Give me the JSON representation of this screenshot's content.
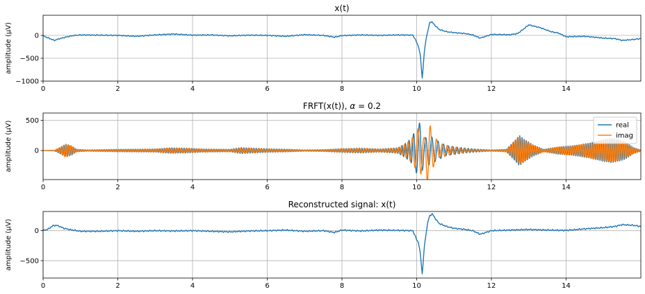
{
  "chart_data": [
    {
      "type": "line",
      "title": "x(t)",
      "xlabel": "",
      "ylabel": "amplitude (μV)",
      "xlim": [
        0,
        16
      ],
      "ylim": [
        -1000,
        440
      ],
      "xticks": [
        0,
        2,
        4,
        6,
        8,
        10,
        12,
        14
      ],
      "xtick_labels": [
        "0",
        "2",
        "4",
        "6",
        "8",
        "10",
        "12",
        "14"
      ],
      "yticks": [
        -1000,
        -500,
        0
      ],
      "ytick_labels": [
        "−1000",
        "−500",
        "0"
      ],
      "grid": true,
      "legend": null,
      "series": [
        {
          "color": "#1f77b4",
          "x": [
            0,
            0.15,
            0.3,
            0.45,
            0.6,
            0.8,
            1.0,
            1.5,
            2.0,
            2.5,
            3.0,
            3.5,
            4.0,
            4.5,
            5.0,
            5.5,
            6.0,
            6.5,
            7.0,
            7.5,
            7.8,
            8.0,
            8.5,
            9.0,
            9.5,
            9.9,
            10.0,
            10.05,
            10.1,
            10.15,
            10.2,
            10.25,
            10.3,
            10.35,
            10.4,
            10.5,
            10.6,
            10.8,
            11.0,
            11.3,
            11.5,
            11.7,
            12.0,
            12.5,
            12.7,
            12.85,
            13.0,
            13.3,
            13.6,
            13.8,
            14.0,
            14.5,
            15.0,
            15.3,
            15.5,
            15.8,
            16.0
          ],
          "y": [
            -10,
            -60,
            -110,
            -70,
            -40,
            -5,
            10,
            5,
            0,
            -20,
            10,
            30,
            5,
            10,
            -10,
            5,
            0,
            -20,
            15,
            0,
            -40,
            -5,
            10,
            0,
            10,
            5,
            -150,
            -250,
            -450,
            -950,
            -400,
            -80,
            100,
            280,
            300,
            210,
            130,
            80,
            60,
            40,
            10,
            -60,
            20,
            15,
            40,
            130,
            230,
            170,
            80,
            50,
            -30,
            -20,
            -60,
            -70,
            -110,
            -90,
            -70
          ]
        }
      ]
    },
    {
      "type": "line",
      "title": "FRFT(x(t)), α = 0.2",
      "title_text": "FRFT(x(t)), ",
      "title_symbol": "α",
      "title_suffix": " = 0.2",
      "xlabel": "",
      "ylabel": "amplitude (μV)",
      "xlim": [
        0,
        16
      ],
      "ylim": [
        -480,
        620
      ],
      "xticks": [
        0,
        2,
        4,
        6,
        8,
        10,
        12,
        14
      ],
      "xtick_labels": [
        "0",
        "2",
        "4",
        "6",
        "8",
        "10",
        "12",
        "14"
      ],
      "yticks": [
        0,
        500
      ],
      "ytick_labels": [
        "0",
        "500"
      ],
      "grid": true,
      "legend": "top-right",
      "legend_labels": [
        "real",
        "imag"
      ],
      "series": [
        {
          "name": "real",
          "color": "#1f77b4",
          "envelope_t": [
            0,
            0.3,
            0.45,
            0.6,
            0.75,
            0.9,
            1.2,
            2.0,
            3.0,
            3.4,
            3.8,
            4.3,
            5.0,
            5.3,
            5.6,
            6.0,
            6.6,
            7.0,
            7.5,
            8.0,
            8.5,
            9.0,
            9.5,
            9.7,
            9.85,
            10.0,
            10.1,
            10.2,
            10.35,
            10.5,
            10.8,
            11.3,
            11.6,
            12.0,
            12.4,
            12.6,
            12.75,
            12.9,
            13.1,
            13.4,
            13.8,
            14.2,
            14.6,
            15.0,
            15.2,
            15.4,
            15.6,
            15.8,
            16.0
          ],
          "envelope_a": [
            0,
            5,
            50,
            100,
            80,
            20,
            10,
            20,
            25,
            45,
            40,
            25,
            20,
            50,
            40,
            30,
            20,
            10,
            15,
            30,
            40,
            25,
            45,
            120,
            200,
            380,
            480,
            200,
            250,
            180,
            80,
            40,
            25,
            10,
            20,
            150,
            250,
            180,
            100,
            20,
            60,
            80,
            120,
            180,
            200,
            180,
            140,
            50,
            10
          ],
          "freq_t": [
            0,
            9.5,
            10.0,
            10.5,
            12.5,
            16.0
          ],
          "freq_f": [
            16,
            14,
            6,
            6,
            17,
            17
          ],
          "phase": 0
        },
        {
          "name": "imag",
          "color": "#ff7f0e",
          "envelope_t": [
            0,
            0.3,
            0.45,
            0.6,
            0.75,
            0.9,
            1.2,
            2.0,
            3.0,
            3.4,
            3.8,
            4.3,
            5.0,
            5.3,
            5.6,
            6.0,
            6.6,
            7.0,
            7.5,
            8.0,
            8.5,
            9.0,
            9.5,
            9.7,
            9.85,
            10.0,
            10.1,
            10.2,
            10.3,
            10.4,
            10.6,
            11.0,
            11.3,
            11.6,
            12.0,
            12.4,
            12.6,
            12.75,
            12.9,
            13.1,
            13.4,
            13.8,
            14.2,
            14.6,
            15.0,
            15.2,
            15.4,
            15.6,
            15.8,
            16.0
          ],
          "envelope_a": [
            0,
            5,
            50,
            110,
            80,
            20,
            10,
            20,
            25,
            40,
            35,
            25,
            20,
            40,
            35,
            25,
            20,
            10,
            15,
            30,
            35,
            25,
            40,
            110,
            180,
            330,
            420,
            200,
            560,
            320,
            120,
            60,
            30,
            20,
            10,
            20,
            140,
            230,
            170,
            90,
            20,
            60,
            80,
            120,
            170,
            190,
            170,
            130,
            50,
            10
          ],
          "freq_t": [
            0,
            9.5,
            10.0,
            10.5,
            12.5,
            16.0
          ],
          "freq_f": [
            16,
            14,
            6,
            6,
            17,
            17
          ],
          "phase": 1.5708
        }
      ]
    },
    {
      "type": "line",
      "title": "Reconstructed signal: x(t)",
      "xlabel": "",
      "ylabel": "amplitude (μV)",
      "xlim": [
        0,
        16
      ],
      "ylim": [
        -790,
        320
      ],
      "xticks": [
        0,
        2,
        4,
        6,
        8,
        10,
        12,
        14
      ],
      "xtick_labels": [
        "0",
        "2",
        "4",
        "6",
        "8",
        "10",
        "12",
        "14"
      ],
      "yticks": [
        -500,
        0
      ],
      "ytick_labels": [
        "−500",
        "0"
      ],
      "grid": true,
      "legend": null,
      "series": [
        {
          "color": "#1f77b4",
          "x": [
            0,
            0.15,
            0.25,
            0.35,
            0.45,
            0.55,
            0.7,
            1.0,
            1.5,
            2.0,
            2.5,
            3.0,
            3.5,
            4.0,
            4.5,
            5.0,
            5.5,
            6.0,
            6.5,
            7.0,
            7.5,
            7.8,
            8.0,
            8.5,
            9.0,
            9.5,
            9.9,
            10.0,
            10.05,
            10.1,
            10.15,
            10.2,
            10.25,
            10.3,
            10.35,
            10.42,
            10.5,
            10.6,
            10.8,
            11.0,
            11.3,
            11.5,
            11.7,
            12.0,
            12.5,
            13.0,
            13.5,
            14.0,
            14.5,
            15.0,
            15.3,
            15.5,
            15.8,
            16.0
          ],
          "y": [
            0,
            30,
            80,
            90,
            70,
            40,
            20,
            -10,
            -10,
            0,
            -10,
            0,
            -5,
            0,
            -10,
            -20,
            -5,
            0,
            10,
            -10,
            0,
            -30,
            10,
            -5,
            10,
            5,
            0,
            -150,
            -200,
            -400,
            -730,
            -300,
            -50,
            150,
            250,
            280,
            200,
            120,
            70,
            40,
            20,
            0,
            -60,
            0,
            10,
            20,
            10,
            5,
            30,
            50,
            70,
            100,
            90,
            70
          ]
        }
      ]
    }
  ]
}
